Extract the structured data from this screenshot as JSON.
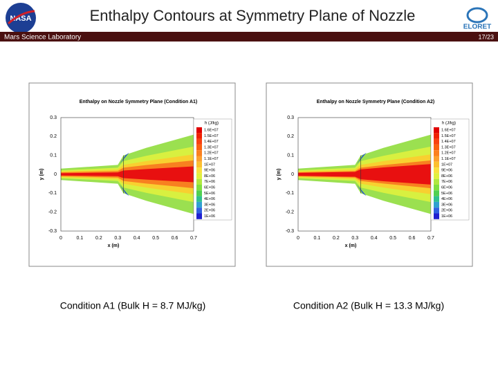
{
  "header": {
    "title": "Enthalpy Contours at Symmetry Plane of Nozzle",
    "subtitle": "Mars Science Laboratory",
    "page": "17/23"
  },
  "figures": [
    {
      "title": "Enthalpy on Nozzle Symmetry Plane (Condition A1)",
      "xlabel": "x (m)",
      "ylabel": "y (m)",
      "xticks": [
        "0",
        "0.1",
        "0.2",
        "0.3",
        "0.4",
        "0.5",
        "0.6",
        "0.7"
      ],
      "yticks": [
        "0.3",
        "0.2",
        "0.1",
        "0",
        "-0.1",
        "-0.2",
        "-0.3"
      ],
      "legend_title": "h (J/kg)",
      "legend": [
        "1.6E+07",
        "1.5E+07",
        "1.4E+07",
        "1.3E+07",
        "1.2E+07",
        "1.1E+07",
        "1E+07",
        "9E+06",
        "8E+06",
        "7E+06",
        "6E+06",
        "5E+06",
        "4E+06",
        "3E+06",
        "2E+06",
        "1E+06"
      ],
      "caption": "Condition A1 (Bulk H = 8.7 MJ/kg)"
    },
    {
      "title": "Enthalpy on Nozzle Symmetry Plane (Condition A2)",
      "xlabel": "x (m)",
      "ylabel": "y (m)",
      "xticks": [
        "0",
        "0.1",
        "0.2",
        "0.3",
        "0.4",
        "0.5",
        "0.6",
        "0.7"
      ],
      "yticks": [
        "0.3",
        "0.2",
        "0.1",
        "0",
        "-0.1",
        "-0.2",
        "-0.3"
      ],
      "legend_title": "h (J/kg)",
      "legend": [
        "1.6E+07",
        "1.5E+07",
        "1.4E+07",
        "1.3E+07",
        "1.2E+07",
        "1.1E+07",
        "1E+07",
        "9E+06",
        "8E+06",
        "7E+06",
        "6E+06",
        "5E+06",
        "4E+06",
        "3E+06",
        "2E+06",
        "1E+06"
      ],
      "caption": "Condition A2 (Bulk H = 13.3 MJ/kg)"
    }
  ]
}
